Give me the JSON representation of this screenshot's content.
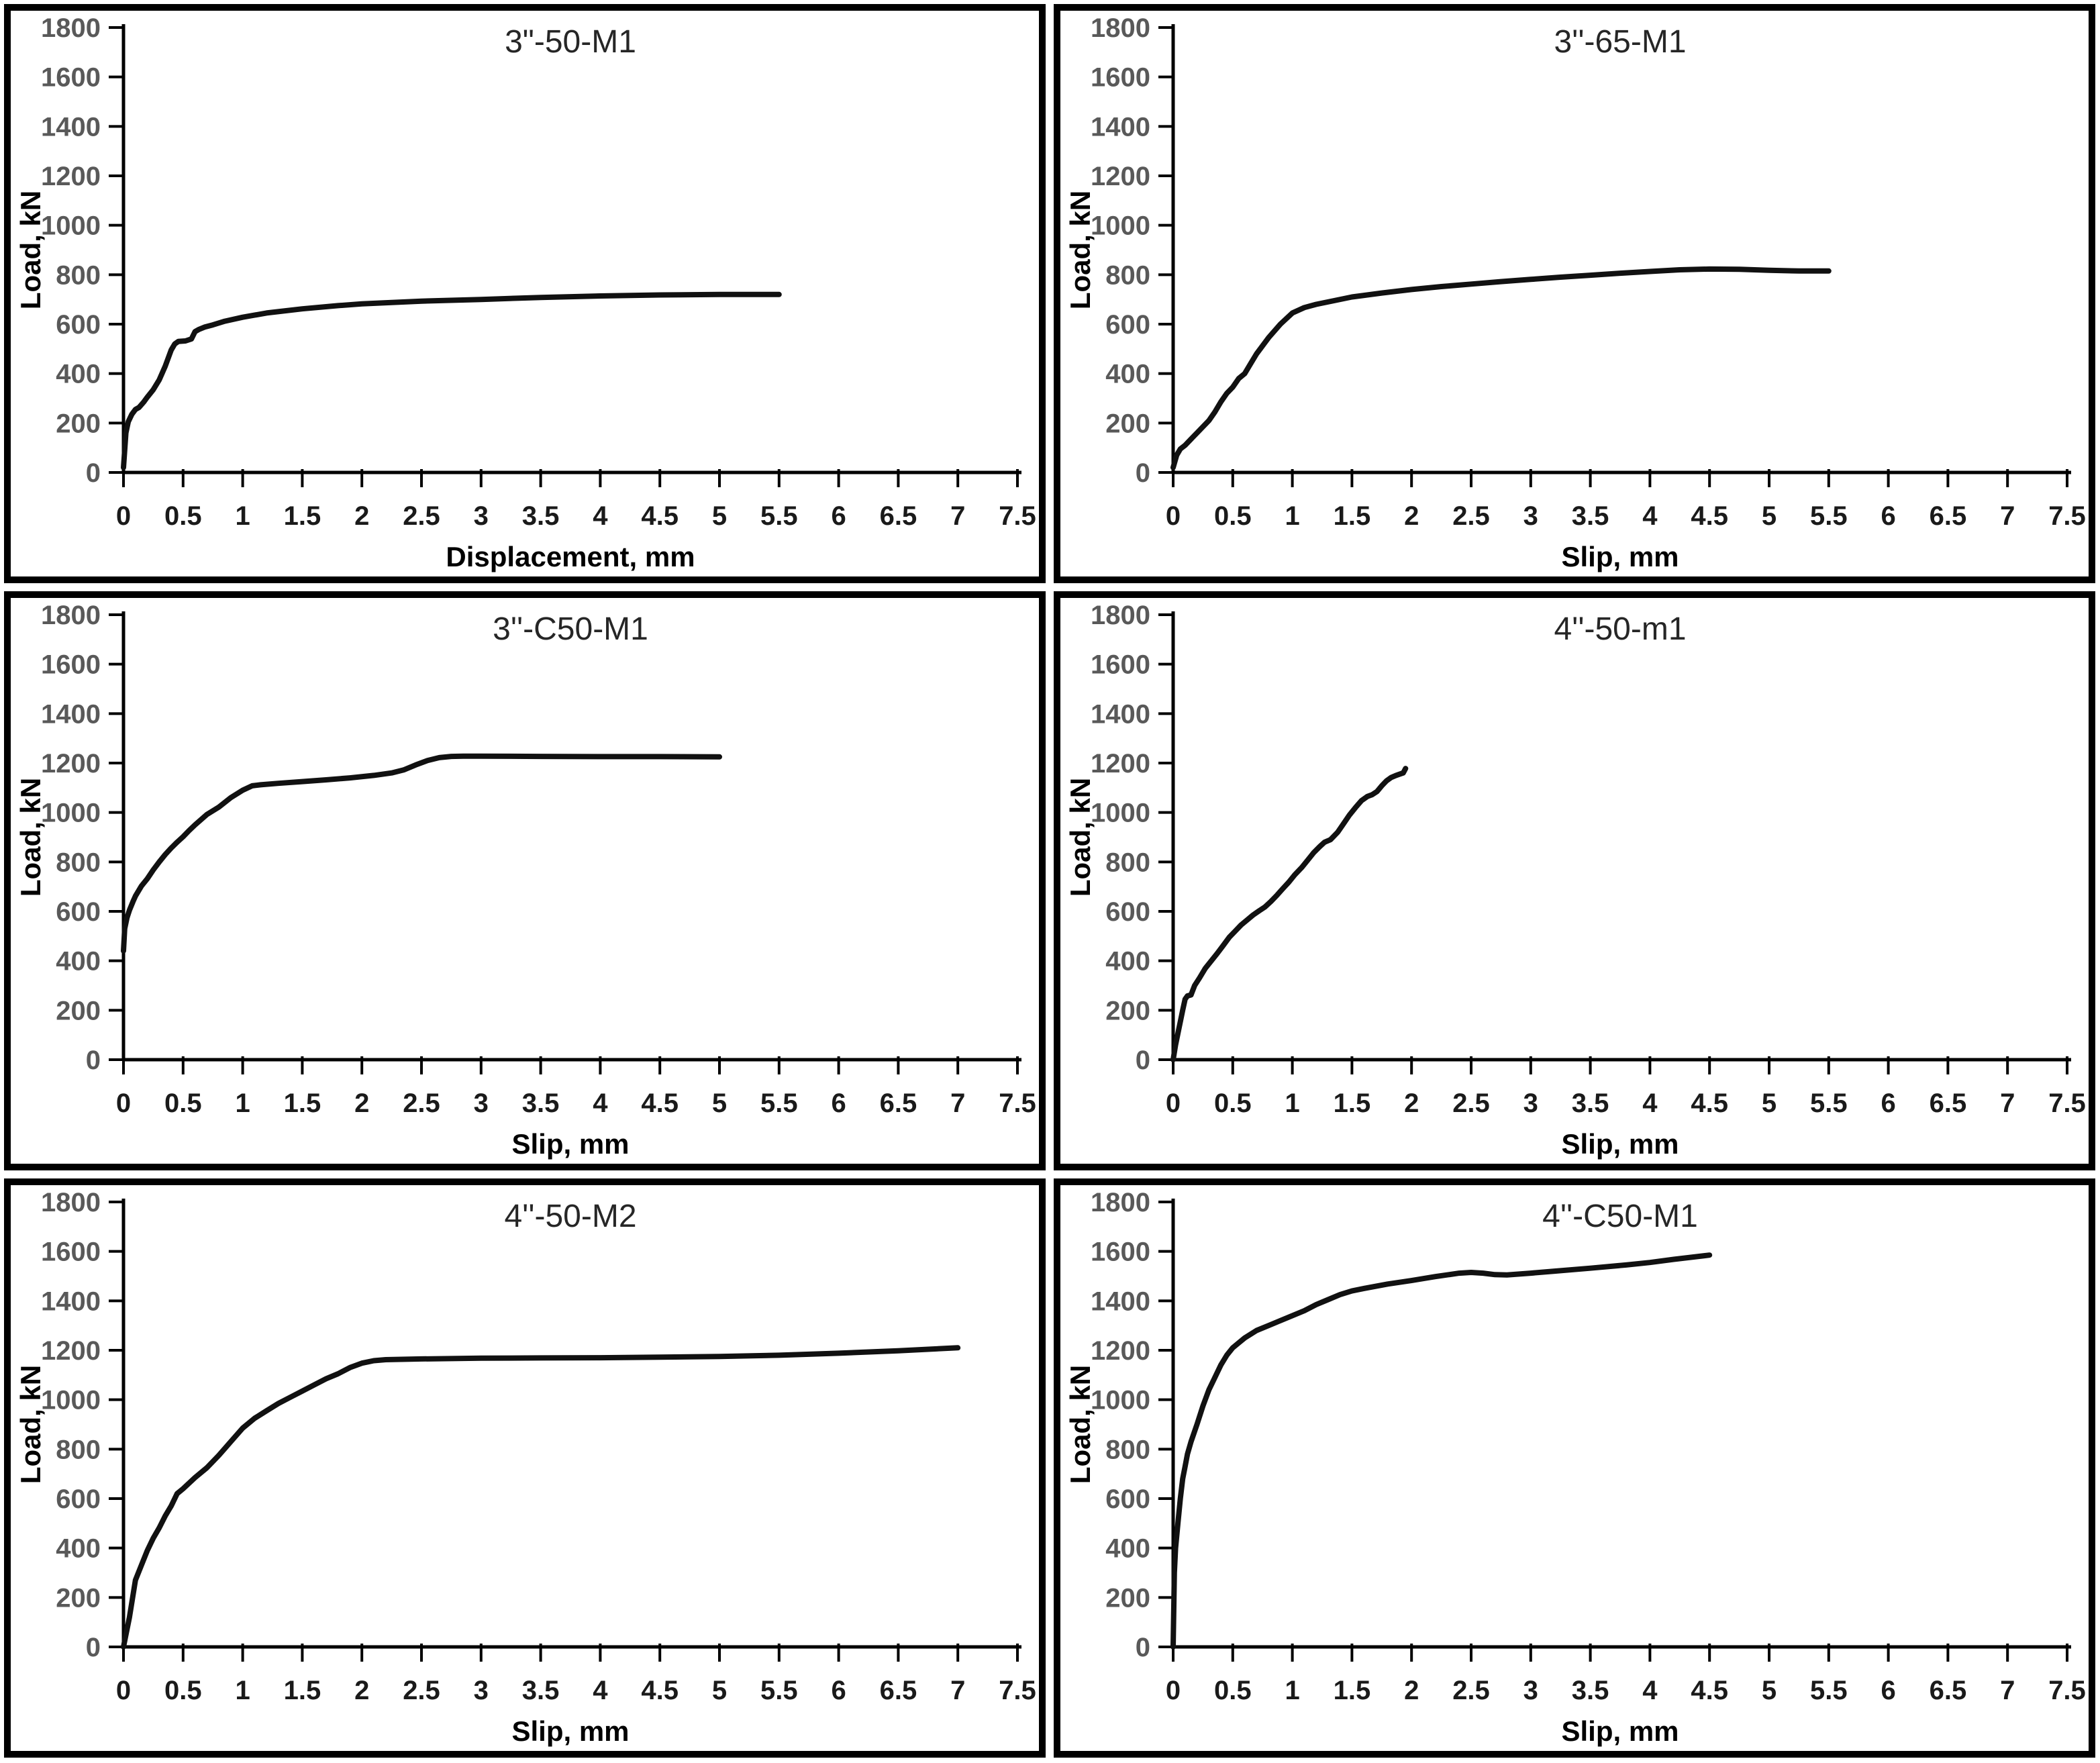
{
  "figure": {
    "panel_count": 6,
    "curve_color": "#111111",
    "axis_color": "#000000",
    "ytick_color": "#595959",
    "xtick_color": "#1a1a1a",
    "border_color": "#000000"
  },
  "chart_data": [
    {
      "type": "line",
      "title": "3\"-50-M1",
      "xlabel": "Displacement, mm",
      "ylabel": "Load, kN",
      "xlim": [
        0,
        7.5
      ],
      "ylim": [
        0,
        1800
      ],
      "x_tick_labels": [
        "0",
        "0.5",
        "1",
        "1.5",
        "2",
        "2.5",
        "3",
        "3.5",
        "4",
        "4.5",
        "5",
        "5.5",
        "6",
        "6.5",
        "7",
        "7.5"
      ],
      "y_tick_labels": [
        "0",
        "200",
        "400",
        "600",
        "800",
        "1000",
        "1200",
        "1400",
        "1600",
        "1800"
      ],
      "grid": false,
      "legend": "none",
      "series": {
        "x": [
          0,
          0.02,
          0.04,
          0.07,
          0.1,
          0.13,
          0.17,
          0.2,
          0.25,
          0.3,
          0.35,
          0.4,
          0.43,
          0.46,
          0.52,
          0.57,
          0.6,
          0.63,
          0.68,
          0.75,
          0.85,
          1.0,
          1.2,
          1.5,
          1.8,
          2.0,
          2.5,
          3.0,
          3.5,
          4.0,
          4.5,
          5.0,
          5.5
        ],
        "y": [
          20,
          160,
          205,
          235,
          255,
          263,
          285,
          305,
          335,
          375,
          430,
          495,
          520,
          530,
          532,
          540,
          570,
          578,
          588,
          597,
          612,
          628,
          645,
          662,
          675,
          682,
          693,
          700,
          708,
          714,
          718,
          720,
          720
        ]
      }
    },
    {
      "type": "line",
      "title": "3''-65-M1",
      "xlabel": "Slip, mm",
      "ylabel": "Load, kN",
      "xlim": [
        0,
        7.5
      ],
      "ylim": [
        0,
        1800
      ],
      "x_tick_labels": [
        "0",
        "0.5",
        "1",
        "1.5",
        "2",
        "2.5",
        "3",
        "3.5",
        "4",
        "4.5",
        "5",
        "5.5",
        "6",
        "6.5",
        "7",
        "7.5"
      ],
      "y_tick_labels": [
        "0",
        "200",
        "400",
        "600",
        "800",
        "1000",
        "1200",
        "1400",
        "1600",
        "1800"
      ],
      "grid": false,
      "legend": "none",
      "series": {
        "x": [
          0,
          0.03,
          0.06,
          0.1,
          0.15,
          0.2,
          0.25,
          0.3,
          0.35,
          0.4,
          0.45,
          0.5,
          0.55,
          0.6,
          0.65,
          0.7,
          0.8,
          0.9,
          1.0,
          1.1,
          1.2,
          1.35,
          1.5,
          1.75,
          2.0,
          2.25,
          2.5,
          2.75,
          3.0,
          3.25,
          3.5,
          3.75,
          4.0,
          4.25,
          4.5,
          4.75,
          5.0,
          5.25,
          5.5
        ],
        "y": [
          20,
          70,
          95,
          110,
          135,
          160,
          185,
          210,
          245,
          285,
          320,
          345,
          380,
          400,
          440,
          480,
          545,
          600,
          645,
          667,
          680,
          695,
          710,
          726,
          740,
          752,
          762,
          772,
          781,
          790,
          798,
          806,
          813,
          820,
          823,
          822,
          818,
          815,
          815
        ]
      }
    },
    {
      "type": "line",
      "title": "3''-C50-M1",
      "xlabel": "Slip, mm",
      "ylabel": "Load, kN",
      "xlim": [
        0,
        7.5
      ],
      "ylim": [
        0,
        1800
      ],
      "x_tick_labels": [
        "0",
        "0.5",
        "1",
        "1.5",
        "2",
        "2.5",
        "3",
        "3.5",
        "4",
        "4.5",
        "5",
        "5.5",
        "6",
        "6.5",
        "7",
        "7.5"
      ],
      "y_tick_labels": [
        "0",
        "200",
        "400",
        "600",
        "800",
        "1000",
        "1200",
        "1400",
        "1600",
        "1800"
      ],
      "grid": false,
      "legend": "none",
      "series": {
        "x": [
          0,
          0.01,
          0.03,
          0.05,
          0.08,
          0.1,
          0.15,
          0.2,
          0.25,
          0.3,
          0.35,
          0.4,
          0.45,
          0.5,
          0.55,
          0.6,
          0.7,
          0.8,
          0.9,
          1.0,
          1.08,
          1.15,
          1.3,
          1.5,
          1.7,
          1.9,
          2.1,
          2.25,
          2.35,
          2.45,
          2.55,
          2.65,
          2.75,
          2.85,
          3.0,
          3.5,
          4.0,
          4.5,
          5.0
        ],
        "y": [
          440,
          530,
          575,
          605,
          640,
          662,
          702,
          732,
          768,
          800,
          830,
          856,
          880,
          902,
          927,
          950,
          992,
          1022,
          1060,
          1090,
          1108,
          1112,
          1118,
          1125,
          1132,
          1140,
          1150,
          1160,
          1172,
          1192,
          1210,
          1222,
          1227,
          1228,
          1228,
          1227,
          1226,
          1226,
          1225
        ]
      }
    },
    {
      "type": "line",
      "title": "4''-50-m1",
      "xlabel": "Slip, mm",
      "ylabel": "Load, kN",
      "xlim": [
        0,
        7.5
      ],
      "ylim": [
        0,
        1800
      ],
      "x_tick_labels": [
        "0",
        "0.5",
        "1",
        "1.5",
        "2",
        "2.5",
        "3",
        "3.5",
        "4",
        "4.5",
        "5",
        "5.5",
        "6",
        "6.5",
        "7",
        "7.5"
      ],
      "y_tick_labels": [
        "0",
        "200",
        "400",
        "600",
        "800",
        "1000",
        "1200",
        "1400",
        "1600",
        "1800"
      ],
      "grid": false,
      "legend": "none",
      "series": {
        "x": [
          0,
          0.02,
          0.05,
          0.08,
          0.1,
          0.12,
          0.15,
          0.18,
          0.22,
          0.27,
          0.32,
          0.37,
          0.42,
          0.47,
          0.52,
          0.57,
          0.62,
          0.67,
          0.72,
          0.77,
          0.82,
          0.87,
          0.92,
          0.97,
          1.02,
          1.08,
          1.13,
          1.18,
          1.23,
          1.27,
          1.32,
          1.38,
          1.43,
          1.48,
          1.53,
          1.58,
          1.63,
          1.67,
          1.71,
          1.75,
          1.79,
          1.83,
          1.87,
          1.9,
          1.93,
          1.95
        ],
        "y": [
          0,
          60,
          130,
          200,
          245,
          258,
          262,
          300,
          330,
          370,
          400,
          430,
          462,
          495,
          520,
          545,
          565,
          585,
          602,
          618,
          640,
          665,
          692,
          718,
          748,
          778,
          808,
          838,
          862,
          880,
          890,
          920,
          955,
          990,
          1020,
          1048,
          1065,
          1072,
          1085,
          1108,
          1128,
          1142,
          1150,
          1155,
          1160,
          1178
        ]
      }
    },
    {
      "type": "line",
      "title": "4''-50-M2",
      "xlabel": "Slip, mm",
      "ylabel": "Load, kN",
      "xlim": [
        0,
        7.5
      ],
      "ylim": [
        0,
        1800
      ],
      "x_tick_labels": [
        "0",
        "0.5",
        "1",
        "1.5",
        "2",
        "2.5",
        "3",
        "3.5",
        "4",
        "4.5",
        "5",
        "5.5",
        "6",
        "6.5",
        "7",
        "7.5"
      ],
      "y_tick_labels": [
        "0",
        "200",
        "400",
        "600",
        "800",
        "1000",
        "1200",
        "1400",
        "1600",
        "1800"
      ],
      "grid": false,
      "legend": "none",
      "series": {
        "x": [
          0,
          0.05,
          0.1,
          0.15,
          0.2,
          0.25,
          0.3,
          0.35,
          0.4,
          0.45,
          0.5,
          0.6,
          0.7,
          0.8,
          0.9,
          1.0,
          1.1,
          1.2,
          1.3,
          1.4,
          1.5,
          1.6,
          1.7,
          1.8,
          1.9,
          2.0,
          2.1,
          2.2,
          2.5,
          3.0,
          3.5,
          4.0,
          4.5,
          5.0,
          5.5,
          6.0,
          6.5,
          7.0
        ],
        "y": [
          0,
          120,
          270,
          330,
          390,
          440,
          482,
          530,
          570,
          620,
          640,
          685,
          725,
          775,
          830,
          885,
          925,
          955,
          985,
          1010,
          1035,
          1060,
          1085,
          1105,
          1130,
          1148,
          1158,
          1162,
          1165,
          1168,
          1169,
          1170,
          1172,
          1175,
          1180,
          1188,
          1198,
          1210
        ]
      }
    },
    {
      "type": "line",
      "title": "4''-C50-M1",
      "xlabel": "Slip, mm",
      "ylabel": "Load, kN",
      "xlim": [
        0,
        7.5
      ],
      "ylim": [
        0,
        1800
      ],
      "x_tick_labels": [
        "0",
        "0.5",
        "1",
        "1.5",
        "2",
        "2.5",
        "3",
        "3.5",
        "4",
        "4.5",
        "5",
        "5.5",
        "6",
        "6.5",
        "7",
        "7.5"
      ],
      "y_tick_labels": [
        "0",
        "200",
        "400",
        "600",
        "800",
        "1000",
        "1200",
        "1400",
        "1600",
        "1800"
      ],
      "grid": false,
      "legend": "none",
      "series": {
        "x": [
          0,
          0.01,
          0.02,
          0.04,
          0.06,
          0.08,
          0.1,
          0.12,
          0.15,
          0.2,
          0.25,
          0.3,
          0.35,
          0.4,
          0.45,
          0.5,
          0.55,
          0.6,
          0.7,
          0.8,
          0.9,
          1.0,
          1.1,
          1.2,
          1.3,
          1.4,
          1.5,
          1.6,
          1.8,
          2.0,
          2.2,
          2.4,
          2.5,
          2.6,
          2.7,
          2.8,
          3.0,
          3.2,
          3.5,
          3.8,
          4.0,
          4.2,
          4.5
        ],
        "y": [
          0,
          300,
          400,
          500,
          600,
          680,
          730,
          780,
          830,
          900,
          975,
          1040,
          1090,
          1140,
          1180,
          1210,
          1230,
          1250,
          1280,
          1300,
          1320,
          1340,
          1360,
          1385,
          1405,
          1425,
          1440,
          1450,
          1468,
          1482,
          1498,
          1512,
          1515,
          1512,
          1506,
          1505,
          1512,
          1520,
          1532,
          1545,
          1555,
          1568,
          1585
        ]
      }
    }
  ]
}
